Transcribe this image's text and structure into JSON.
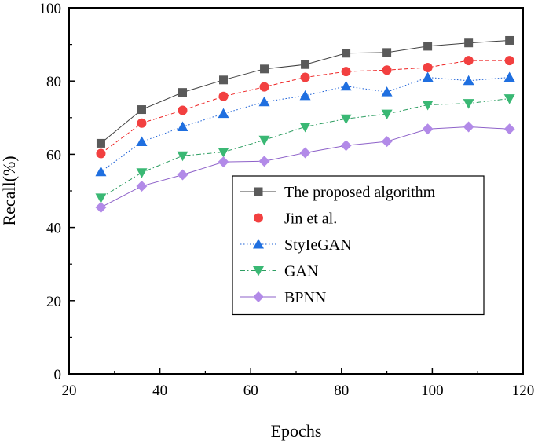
{
  "chart_data": {
    "type": "line",
    "title": "",
    "xlabel": "Epochs",
    "ylabel": "Recall(%)",
    "xlim": [
      20,
      120
    ],
    "ylim": [
      0,
      100
    ],
    "xticks": [
      20,
      40,
      60,
      80,
      100,
      120
    ],
    "yticks": [
      0,
      20,
      40,
      60,
      80,
      100
    ],
    "grid": false,
    "legend_position": "lower-right",
    "x": [
      27,
      36,
      45,
      54,
      63,
      72,
      81,
      90,
      99,
      108,
      117
    ],
    "series": [
      {
        "name": "The proposed algorithm",
        "values": [
          63,
          72.2,
          76.9,
          80.3,
          83.3,
          84.5,
          87.6,
          87.8,
          89.5,
          90.4,
          91.1
        ],
        "line_color": "#404040",
        "marker_color": "#5a5a5a",
        "marker": "square",
        "dash": "solid"
      },
      {
        "name": "Jin et al.",
        "values": [
          60.2,
          68.5,
          72,
          75.8,
          78.4,
          81,
          82.6,
          83,
          83.7,
          85.6,
          85.6
        ],
        "line_color": "#ee2222",
        "marker_color": "#f24040",
        "marker": "circle",
        "dash": "dashed"
      },
      {
        "name": "StyIeGAN",
        "values": [
          55.2,
          63.4,
          67.5,
          71.1,
          74.3,
          76,
          78.6,
          77,
          81,
          80.1,
          81
        ],
        "line_color": "#1a5fd6",
        "marker_color": "#1f6fe0",
        "marker": "triangle-up",
        "dash": "dotted"
      },
      {
        "name": "GAN",
        "values": [
          48.1,
          55,
          59.6,
          60.6,
          63.9,
          67.5,
          69.7,
          71,
          73.5,
          73.9,
          75.2
        ],
        "line_color": "#2e9e62",
        "marker_color": "#3ab874",
        "marker": "triangle-down",
        "dash": "dashdot"
      },
      {
        "name": "BPNN",
        "values": [
          45.5,
          51.3,
          54.4,
          57.9,
          58.1,
          60.4,
          62.4,
          63.5,
          66.9,
          67.5,
          66.9
        ],
        "line_color": "#8e62c9",
        "marker_color": "#b28ae8",
        "marker": "diamond",
        "dash": "solid"
      }
    ]
  }
}
